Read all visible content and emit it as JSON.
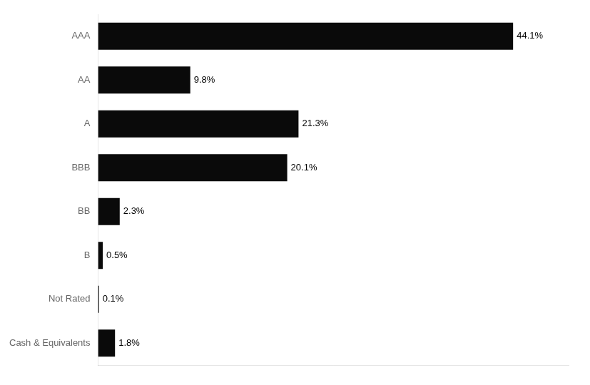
{
  "chart_data": {
    "type": "bar",
    "orientation": "horizontal",
    "categories": [
      "AAA",
      "AA",
      "A",
      "BBB",
      "BB",
      "B",
      "Not Rated",
      "Cash & Equivalents"
    ],
    "values": [
      44.1,
      9.8,
      21.3,
      20.1,
      2.3,
      0.5,
      0.1,
      1.8
    ],
    "value_labels": [
      "44.1%",
      "9.8%",
      "21.3%",
      "20.1%",
      "2.3%",
      "0.5%",
      "0.1%",
      "1.8%"
    ],
    "color": "#0a0a0a",
    "xlim": [
      0,
      50
    ],
    "grid": false,
    "data_labels": true,
    "tick_labels": "y"
  }
}
